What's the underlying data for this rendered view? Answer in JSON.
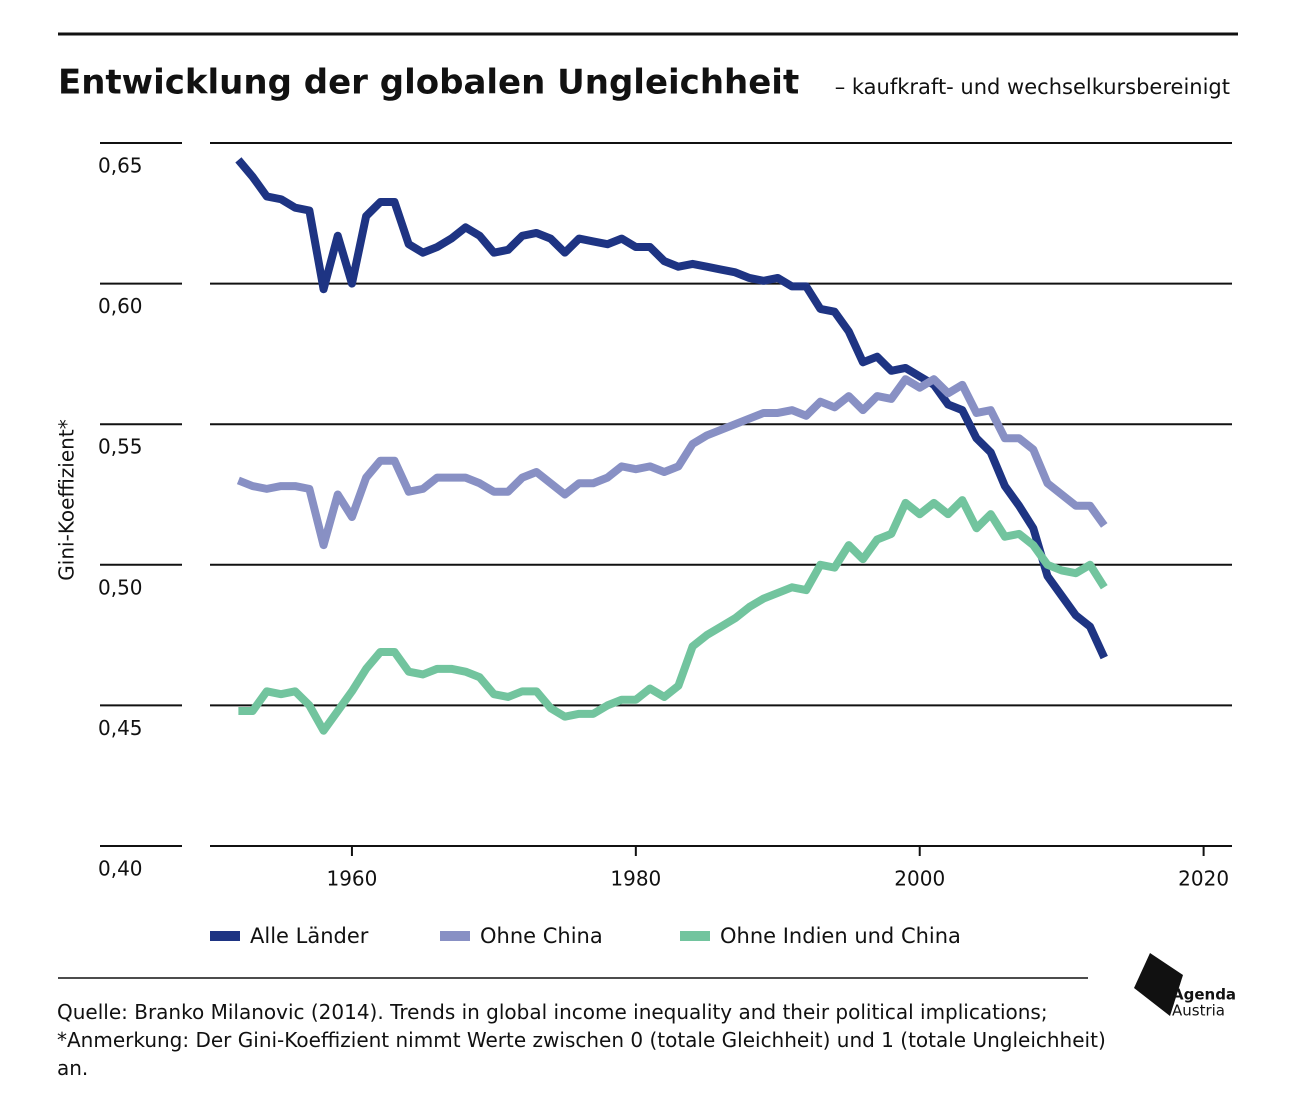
{
  "chart_data": {
    "type": "line",
    "title": "Entwicklung der globalen Ungleichheit",
    "subtitle": "– kaufkraft- und wechselkursbereinigt",
    "y_label": "Gini-Koeffizient*",
    "x": [
      1952,
      1953,
      1954,
      1955,
      1956,
      1957,
      1958,
      1959,
      1960,
      1961,
      1962,
      1963,
      1964,
      1965,
      1966,
      1967,
      1968,
      1969,
      1970,
      1971,
      1972,
      1973,
      1974,
      1975,
      1976,
      1977,
      1978,
      1979,
      1980,
      1981,
      1982,
      1983,
      1984,
      1985,
      1986,
      1987,
      1988,
      1989,
      1990,
      1991,
      1992,
      1993,
      1994,
      1995,
      1996,
      1997,
      1998,
      1999,
      2000,
      2001,
      2002,
      2003,
      2004,
      2005,
      2006,
      2007,
      2008,
      2009,
      2010,
      2011,
      2012,
      2013
    ],
    "series": [
      {
        "name": "Alle Länder",
        "color": "#1e3483",
        "values": [
          0.644,
          0.638,
          0.631,
          0.63,
          0.627,
          0.626,
          0.598,
          0.617,
          0.6,
          0.624,
          0.629,
          0.629,
          0.614,
          0.611,
          0.613,
          0.616,
          0.62,
          0.617,
          0.611,
          0.612,
          0.617,
          0.618,
          0.616,
          0.611,
          0.616,
          0.615,
          0.614,
          0.616,
          0.613,
          0.613,
          0.608,
          0.606,
          0.607,
          0.606,
          0.605,
          0.604,
          0.602,
          0.601,
          0.602,
          0.599,
          0.599,
          0.591,
          0.59,
          0.583,
          0.572,
          0.574,
          0.569,
          0.57,
          0.567,
          0.564,
          0.557,
          0.555,
          0.545,
          0.54,
          0.528,
          0.521,
          0.513,
          0.496,
          0.489,
          0.482,
          0.478,
          0.467
        ]
      },
      {
        "name": "Ohne China",
        "color": "#8890c4",
        "values": [
          0.53,
          0.528,
          0.527,
          0.528,
          0.528,
          0.527,
          0.507,
          0.525,
          0.517,
          0.531,
          0.537,
          0.537,
          0.526,
          0.527,
          0.531,
          0.531,
          0.531,
          0.529,
          0.526,
          0.526,
          0.531,
          0.533,
          0.529,
          0.525,
          0.529,
          0.529,
          0.531,
          0.535,
          0.534,
          0.535,
          0.533,
          0.535,
          0.543,
          0.546,
          0.548,
          0.55,
          0.552,
          0.554,
          0.554,
          0.555,
          0.553,
          0.558,
          0.556,
          0.56,
          0.555,
          0.56,
          0.559,
          0.566,
          0.563,
          0.566,
          0.561,
          0.564,
          0.554,
          0.555,
          0.545,
          0.545,
          0.541,
          0.529,
          0.525,
          0.521,
          0.521,
          0.514
        ]
      },
      {
        "name": "Ohne Indien und China",
        "color": "#72c49e",
        "values": [
          0.448,
          0.448,
          0.455,
          0.454,
          0.455,
          0.45,
          0.441,
          0.448,
          0.455,
          0.463,
          0.469,
          0.469,
          0.462,
          0.461,
          0.463,
          0.463,
          0.462,
          0.46,
          0.454,
          0.453,
          0.455,
          0.455,
          0.449,
          0.446,
          0.447,
          0.447,
          0.45,
          0.452,
          0.452,
          0.456,
          0.453,
          0.457,
          0.471,
          0.475,
          0.478,
          0.481,
          0.485,
          0.488,
          0.49,
          0.492,
          0.491,
          0.5,
          0.499,
          0.507,
          0.502,
          0.509,
          0.511,
          0.522,
          0.518,
          0.522,
          0.518,
          0.523,
          0.513,
          0.518,
          0.51,
          0.511,
          0.507,
          0.5,
          0.498,
          0.497,
          0.5,
          0.492
        ]
      }
    ],
    "xlim": [
      1950,
      2022
    ],
    "xticks": [
      1960,
      1980,
      2000,
      2020
    ],
    "ylim": [
      0.4,
      0.65
    ],
    "yticks": [
      {
        "value": 0.4,
        "label": "0,40"
      },
      {
        "value": 0.45,
        "label": "0,45"
      },
      {
        "value": 0.5,
        "label": "0,50"
      },
      {
        "value": 0.55,
        "label": "0,55"
      },
      {
        "value": 0.6,
        "label": "0,60"
      },
      {
        "value": 0.65,
        "label": "0,65"
      }
    ],
    "grid": true,
    "legend": "bottom"
  },
  "source": "Quelle: Branko Milanovic (2014). Trends in global income inequality and their political implications;  *Anmerkung: Der Gini-Koeffizient nimmt Werte zwischen 0 (totale Gleichheit) und 1 (totale Ungleichheit) an.",
  "logo": {
    "line1": "Agenda",
    "line2": "Austria"
  }
}
